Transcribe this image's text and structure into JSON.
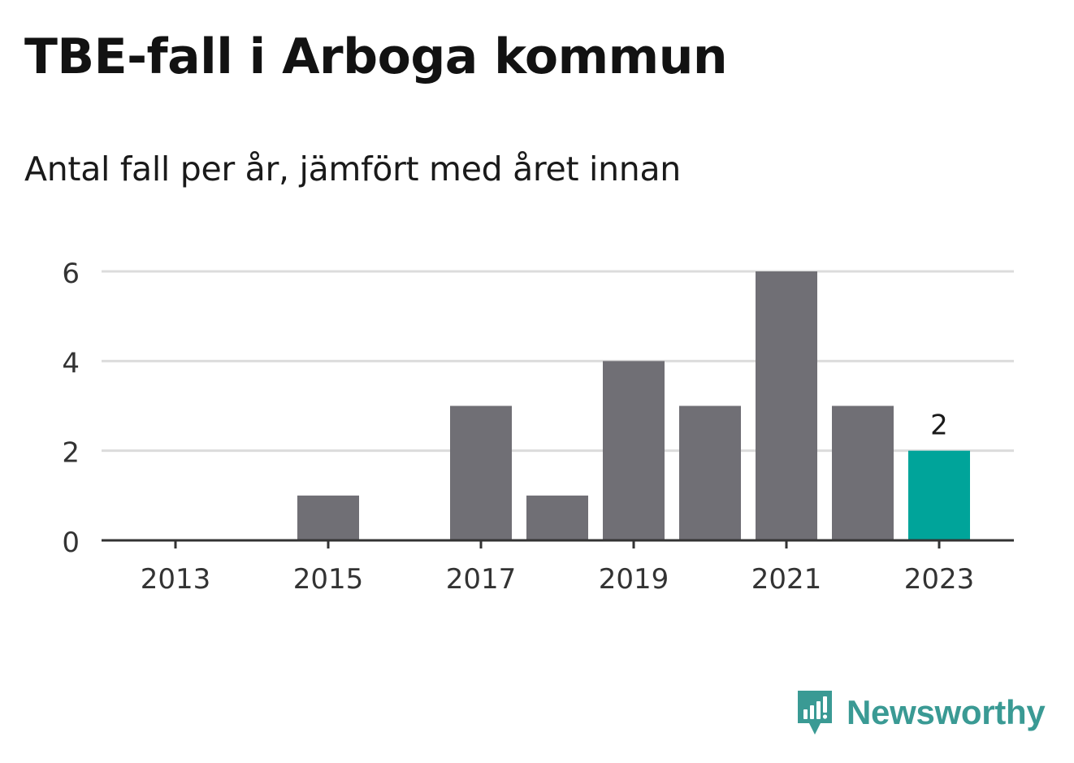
{
  "chart_data": {
    "type": "bar",
    "title": "TBE-fall i Arboga kommun",
    "subtitle": "Antal fall per år, jämfört med året innan",
    "xlabel": "",
    "ylabel": "",
    "categories": [
      "2013",
      "2014",
      "2015",
      "2016",
      "2017",
      "2018",
      "2019",
      "2020",
      "2021",
      "2022",
      "2023"
    ],
    "values": [
      0,
      0,
      1,
      0,
      3,
      1,
      4,
      3,
      6,
      3,
      2
    ],
    "x_tick_labels": [
      "2013",
      "2015",
      "2017",
      "2019",
      "2021",
      "2023"
    ],
    "y_ticks": [
      0,
      2,
      4,
      6
    ],
    "ylim": [
      0,
      6
    ],
    "grid": true,
    "highlight": {
      "category": "2023",
      "label": "2"
    },
    "colors": {
      "bar": "#706f75",
      "highlight": "#00a49a",
      "grid": "#dcdcdc",
      "axis": "#333333"
    }
  },
  "branding": {
    "name": "Newsworthy",
    "logo_icon": "bar-chart-speech-bubble-icon",
    "color": "#3a9a94"
  }
}
